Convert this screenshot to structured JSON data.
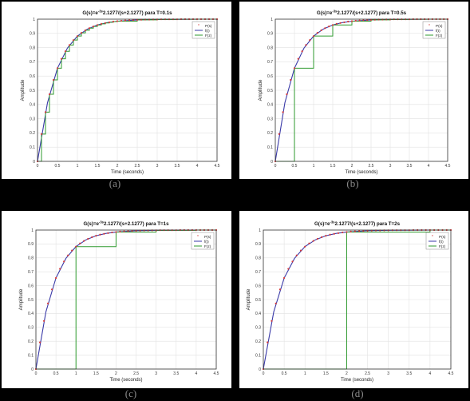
{
  "colors": {
    "sampled_marker": "#d63b3b",
    "continuous": "#3a3aa8",
    "zoh": "#2e9a2e",
    "axis": "#333333",
    "grid": "#e2e2e2"
  },
  "charts": [
    {
      "caption": "(a)",
      "title": "G(s)=e^{-3s}2.1277/(s+2.1277)  para T=0.1s",
      "title_main": "G(s)=e",
      "title_sup": "-3s",
      "title_rest": "2.1277/(s+2.1277)  para T=0.1s",
      "T": 0.1,
      "legend": [
        "P(s)",
        "f(t)",
        "F(z)"
      ]
    },
    {
      "caption": "(b)",
      "title": "G(s)=e^{-3s}2.1277/(s+2.1277)  para T=0.5s",
      "title_main": "G(s)=e",
      "title_sup": "-3s",
      "title_rest": "2.1277/(s+2.1277)  para T=0.5s",
      "T": 0.5,
      "legend": [
        "P(s)",
        "f(t)",
        "F(z)"
      ]
    },
    {
      "caption": "(c)",
      "title": "G(s)=e^{-3s}2.1277/(s+2.1277)  para T=1s",
      "title_main": "G(s)=e",
      "title_sup": "-3s",
      "title_rest": "2.1277/(s+2.1277)  para T=1s",
      "T": 1,
      "legend": [
        "P(s)",
        "f(t)",
        "F(z)"
      ]
    },
    {
      "caption": "(d)",
      "title": "G(s)=e^{-3s}2.1277/(s+2.1277)  para T=2s",
      "title_main": "G(s)=e",
      "title_sup": "-3s",
      "title_rest": "2.1277/(s+2.1277)  para T=2s",
      "T": 2,
      "legend": [
        "P(s)",
        "f(t)",
        "F(z)"
      ]
    }
  ],
  "chart_data": [
    {
      "type": "line",
      "title": "G(s)=e^{-3s}2.1277/(s+2.1277)  para T=0.1s",
      "xlabel": "Time (seconds)",
      "ylabel": "Amplitude",
      "xlim": [
        0,
        4.5
      ],
      "ylim": [
        0,
        1
      ],
      "xticks": [
        0,
        0.5,
        1,
        1.5,
        2,
        2.5,
        3,
        3.5,
        4,
        4.5
      ],
      "xtick_labels": [
        "0",
        "0.5",
        "1",
        "1.5",
        "2",
        "2.5",
        "3",
        "3.5",
        "4",
        "4.5"
      ],
      "yticks": [
        0,
        0.1,
        0.2,
        0.3,
        0.4,
        0.5,
        0.6,
        0.7,
        0.8,
        0.9,
        1
      ],
      "ytick_labels": [
        "0",
        "0.1",
        "0.2",
        "0.3",
        "0.4",
        "0.5",
        "0.6",
        "0.7",
        "0.8",
        "0.9",
        "1"
      ],
      "grid": true,
      "legend_position": "top-right",
      "series": [
        {
          "name": "P(s)",
          "style": "markers",
          "x": [
            0,
            0.1,
            0.2,
            0.3,
            0.4,
            0.5,
            0.6,
            0.7,
            0.8,
            0.9,
            1,
            1.1,
            1.2,
            1.3,
            1.4,
            1.5,
            1.6,
            1.7,
            1.8,
            1.9,
            2,
            2.1,
            2.2,
            2.3,
            2.4,
            2.5,
            2.6,
            2.7,
            2.8,
            2.9,
            3,
            3.1,
            3.2,
            3.3,
            3.4,
            3.5,
            3.6,
            3.7,
            3.8,
            3.9,
            4,
            4.1,
            4.2,
            4.3,
            4.4,
            4.5
          ],
          "y": [
            0,
            0.192,
            0.346,
            0.472,
            0.573,
            0.655,
            0.721,
            0.774,
            0.818,
            0.853,
            0.881,
            0.904,
            0.922,
            0.937,
            0.949,
            0.959,
            0.967,
            0.973,
            0.978,
            0.983,
            0.986,
            0.989,
            0.991,
            0.993,
            0.994,
            0.995,
            0.996,
            0.997,
            0.997,
            0.998,
            0.998,
            0.999,
            0.999,
            0.999,
            0.999,
            0.999,
            1,
            1,
            1,
            1,
            1,
            1,
            1,
            1,
            1,
            1
          ]
        },
        {
          "name": "f(t)",
          "style": "line",
          "x": [
            0,
            0.25,
            0.5,
            0.75,
            1,
            1.25,
            1.5,
            1.75,
            2,
            2.5,
            3,
            3.5,
            4,
            4.5
          ],
          "y": [
            0,
            0.412,
            0.655,
            0.797,
            0.881,
            0.93,
            0.959,
            0.976,
            0.986,
            0.995,
            0.998,
            0.999,
            1,
            1
          ]
        },
        {
          "name": "F(z)",
          "style": "step",
          "x": [
            0,
            0.1,
            0.2,
            0.3,
            0.4,
            0.5,
            0.6,
            0.7,
            0.8,
            0.9,
            1,
            1.1,
            1.2,
            1.3,
            1.4,
            1.5,
            1.6,
            1.7,
            1.8,
            1.9,
            2,
            2.5,
            3,
            3.5,
            4,
            4.5
          ],
          "y": [
            0,
            0.192,
            0.346,
            0.472,
            0.573,
            0.655,
            0.721,
            0.774,
            0.818,
            0.853,
            0.881,
            0.904,
            0.922,
            0.937,
            0.949,
            0.959,
            0.967,
            0.973,
            0.978,
            0.983,
            0.986,
            0.995,
            0.998,
            0.999,
            1,
            1
          ]
        }
      ]
    },
    {
      "type": "line",
      "title": "G(s)=e^{-3s}2.1277/(s+2.1277)  para T=0.5s",
      "xlabel": "Time (seconds)",
      "ylabel": "Amplitude",
      "xlim": [
        0,
        4.5
      ],
      "ylim": [
        0,
        1
      ],
      "xticks": [
        0,
        0.5,
        1,
        1.5,
        2,
        2.5,
        3,
        3.5,
        4,
        4.5
      ],
      "xtick_labels": [
        "0",
        "0.5",
        "1",
        "1.5",
        "2",
        "2.5",
        "3",
        "3.5",
        "4",
        "4.5"
      ],
      "yticks": [
        0,
        0.1,
        0.2,
        0.3,
        0.4,
        0.5,
        0.6,
        0.7,
        0.8,
        0.9,
        1
      ],
      "ytick_labels": [
        "0",
        "0.1",
        "0.2",
        "0.3",
        "0.4",
        "0.5",
        "0.6",
        "0.7",
        "0.8",
        "0.9",
        "1"
      ],
      "grid": true,
      "legend_position": "top-right",
      "series": [
        {
          "name": "P(s)",
          "style": "markers",
          "x": [
            0,
            0.1,
            0.2,
            0.3,
            0.4,
            0.5,
            0.6,
            0.7,
            0.8,
            0.9,
            1,
            1.1,
            1.2,
            1.3,
            1.4,
            1.5,
            1.6,
            1.7,
            1.8,
            1.9,
            2,
            2.1,
            2.2,
            2.3,
            2.4,
            2.5,
            2.6,
            2.7,
            2.8,
            2.9,
            3,
            3.1,
            3.2,
            3.3,
            3.4,
            3.5,
            3.6,
            3.7,
            3.8,
            3.9,
            4,
            4.1,
            4.2,
            4.3,
            4.4,
            4.5
          ],
          "y": [
            0,
            0.192,
            0.346,
            0.472,
            0.573,
            0.655,
            0.721,
            0.774,
            0.818,
            0.853,
            0.881,
            0.904,
            0.922,
            0.937,
            0.949,
            0.959,
            0.967,
            0.973,
            0.978,
            0.983,
            0.986,
            0.989,
            0.991,
            0.993,
            0.994,
            0.995,
            0.996,
            0.997,
            0.997,
            0.998,
            0.998,
            0.999,
            0.999,
            0.999,
            0.999,
            0.999,
            1,
            1,
            1,
            1,
            1,
            1,
            1,
            1,
            1,
            1
          ]
        },
        {
          "name": "f(t)",
          "style": "line",
          "x": [
            0,
            0.25,
            0.5,
            0.75,
            1,
            1.25,
            1.5,
            1.75,
            2,
            2.5,
            3,
            3.5,
            4,
            4.5
          ],
          "y": [
            0,
            0.412,
            0.655,
            0.797,
            0.881,
            0.93,
            0.959,
            0.976,
            0.986,
            0.995,
            0.998,
            0.999,
            1,
            1
          ]
        },
        {
          "name": "F(z)",
          "style": "step",
          "x": [
            0,
            0.5,
            1,
            1.5,
            2,
            2.5,
            3,
            3.5,
            4,
            4.5
          ],
          "y": [
            0,
            0.655,
            0.881,
            0.959,
            0.986,
            0.995,
            0.998,
            0.999,
            1,
            1
          ]
        }
      ]
    },
    {
      "type": "line",
      "title": "G(s)=e^{-3s}2.1277/(s+2.1277)  para T=1s",
      "xlabel": "Time (seconds)",
      "ylabel": "Amplitude",
      "xlim": [
        0,
        4.5
      ],
      "ylim": [
        0,
        1
      ],
      "xticks": [
        0,
        0.5,
        1,
        1.5,
        2,
        2.5,
        3,
        3.5,
        4,
        4.5
      ],
      "xtick_labels": [
        "0",
        "0.5",
        "1",
        "1.5",
        "2",
        "2.5",
        "3",
        "3.5",
        "4",
        "4.5"
      ],
      "yticks": [
        0,
        0.1,
        0.2,
        0.3,
        0.4,
        0.5,
        0.6,
        0.7,
        0.8,
        0.9,
        1
      ],
      "ytick_labels": [
        "0",
        "0.1",
        "0.2",
        "0.3",
        "0.4",
        "0.5",
        "0.6",
        "0.7",
        "0.8",
        "0.9",
        "1"
      ],
      "grid": true,
      "legend_position": "top-right",
      "series": [
        {
          "name": "P(s)",
          "style": "markers",
          "x": [
            0,
            0.1,
            0.2,
            0.3,
            0.4,
            0.5,
            0.6,
            0.7,
            0.8,
            0.9,
            1,
            1.1,
            1.2,
            1.3,
            1.4,
            1.5,
            1.6,
            1.7,
            1.8,
            1.9,
            2,
            2.1,
            2.2,
            2.3,
            2.4,
            2.5,
            2.6,
            2.7,
            2.8,
            2.9,
            3,
            3.1,
            3.2,
            3.3,
            3.4,
            3.5,
            3.6,
            3.7,
            3.8,
            3.9,
            4,
            4.1,
            4.2,
            4.3,
            4.4,
            4.5
          ],
          "y": [
            0,
            0.192,
            0.346,
            0.472,
            0.573,
            0.655,
            0.721,
            0.774,
            0.818,
            0.853,
            0.881,
            0.904,
            0.922,
            0.937,
            0.949,
            0.959,
            0.967,
            0.973,
            0.978,
            0.983,
            0.986,
            0.989,
            0.991,
            0.993,
            0.994,
            0.995,
            0.996,
            0.997,
            0.997,
            0.998,
            0.998,
            0.999,
            0.999,
            0.999,
            0.999,
            0.999,
            1,
            1,
            1,
            1,
            1,
            1,
            1,
            1,
            1,
            1
          ]
        },
        {
          "name": "f(t)",
          "style": "line",
          "x": [
            0,
            0.25,
            0.5,
            0.75,
            1,
            1.25,
            1.5,
            1.75,
            2,
            2.5,
            3,
            3.5,
            4,
            4.5
          ],
          "y": [
            0,
            0.412,
            0.655,
            0.797,
            0.881,
            0.93,
            0.959,
            0.976,
            0.986,
            0.995,
            0.998,
            0.999,
            1,
            1
          ]
        },
        {
          "name": "F(z)",
          "style": "step",
          "x": [
            0,
            1,
            2,
            3,
            4,
            4.5
          ],
          "y": [
            0,
            0.881,
            0.986,
            0.998,
            1,
            1
          ]
        }
      ]
    },
    {
      "type": "line",
      "title": "G(s)=e^{-3s}2.1277/(s+2.1277)  para T=2s",
      "xlabel": "Time (seconds)",
      "ylabel": "Amplitude",
      "xlim": [
        0,
        4.5
      ],
      "ylim": [
        0,
        1
      ],
      "xticks": [
        0,
        0.5,
        1,
        1.5,
        2,
        2.5,
        3,
        3.5,
        4,
        4.5
      ],
      "xtick_labels": [
        "0",
        "0.5",
        "1",
        "1.5",
        "2",
        "2.5",
        "3",
        "3.5",
        "4",
        "4.5"
      ],
      "yticks": [
        0,
        0.1,
        0.2,
        0.3,
        0.4,
        0.5,
        0.6,
        0.7,
        0.8,
        0.9,
        1
      ],
      "ytick_labels": [
        "0",
        "0.1",
        "0.2",
        "0.3",
        "0.4",
        "0.5",
        "0.6",
        "0.7",
        "0.8",
        "0.9",
        "1"
      ],
      "grid": true,
      "legend_position": "top-right",
      "series": [
        {
          "name": "P(s)",
          "style": "markers",
          "x": [
            0,
            0.1,
            0.2,
            0.3,
            0.4,
            0.5,
            0.6,
            0.7,
            0.8,
            0.9,
            1,
            1.1,
            1.2,
            1.3,
            1.4,
            1.5,
            1.6,
            1.7,
            1.8,
            1.9,
            2,
            2.1,
            2.2,
            2.3,
            2.4,
            2.5,
            2.6,
            2.7,
            2.8,
            2.9,
            3,
            3.1,
            3.2,
            3.3,
            3.4,
            3.5,
            3.6,
            3.7,
            3.8,
            3.9,
            4,
            4.1,
            4.2,
            4.3,
            4.4,
            4.5
          ],
          "y": [
            0,
            0.192,
            0.346,
            0.472,
            0.573,
            0.655,
            0.721,
            0.774,
            0.818,
            0.853,
            0.881,
            0.904,
            0.922,
            0.937,
            0.949,
            0.959,
            0.967,
            0.973,
            0.978,
            0.983,
            0.986,
            0.989,
            0.991,
            0.993,
            0.994,
            0.995,
            0.996,
            0.997,
            0.997,
            0.998,
            0.998,
            0.999,
            0.999,
            0.999,
            0.999,
            0.999,
            1,
            1,
            1,
            1,
            1,
            1,
            1,
            1,
            1,
            1
          ]
        },
        {
          "name": "f(t)",
          "style": "line",
          "x": [
            0,
            0.25,
            0.5,
            0.75,
            1,
            1.25,
            1.5,
            1.75,
            2,
            2.5,
            3,
            3.5,
            4,
            4.5
          ],
          "y": [
            0,
            0.412,
            0.655,
            0.797,
            0.881,
            0.93,
            0.959,
            0.976,
            0.986,
            0.995,
            0.998,
            0.999,
            1,
            1
          ]
        },
        {
          "name": "F(z)",
          "style": "step",
          "x": [
            0,
            2,
            4,
            4.5
          ],
          "y": [
            0,
            0.986,
            1,
            1
          ]
        }
      ]
    }
  ]
}
